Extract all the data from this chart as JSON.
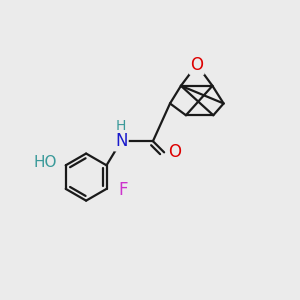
{
  "background_color": "#ebebeb",
  "bond_color": "#1a1a1a",
  "bond_width": 1.6,
  "figsize": [
    3.0,
    3.0
  ],
  "dpi": 100,
  "atoms": {
    "O_epoxide": {
      "label": "O",
      "color": "#dd0000",
      "fontsize": 12
    },
    "O_carbonyl": {
      "label": "O",
      "color": "#dd0000",
      "fontsize": 12
    },
    "N": {
      "label": "N",
      "color": "#1a1acc",
      "fontsize": 12
    },
    "H": {
      "label": "H",
      "color": "#3a9a9a",
      "fontsize": 10
    },
    "HO": {
      "label": "HO",
      "color": "#3a9a9a",
      "fontsize": 11
    },
    "F": {
      "label": "F",
      "color": "#cc33cc",
      "fontsize": 12
    }
  }
}
